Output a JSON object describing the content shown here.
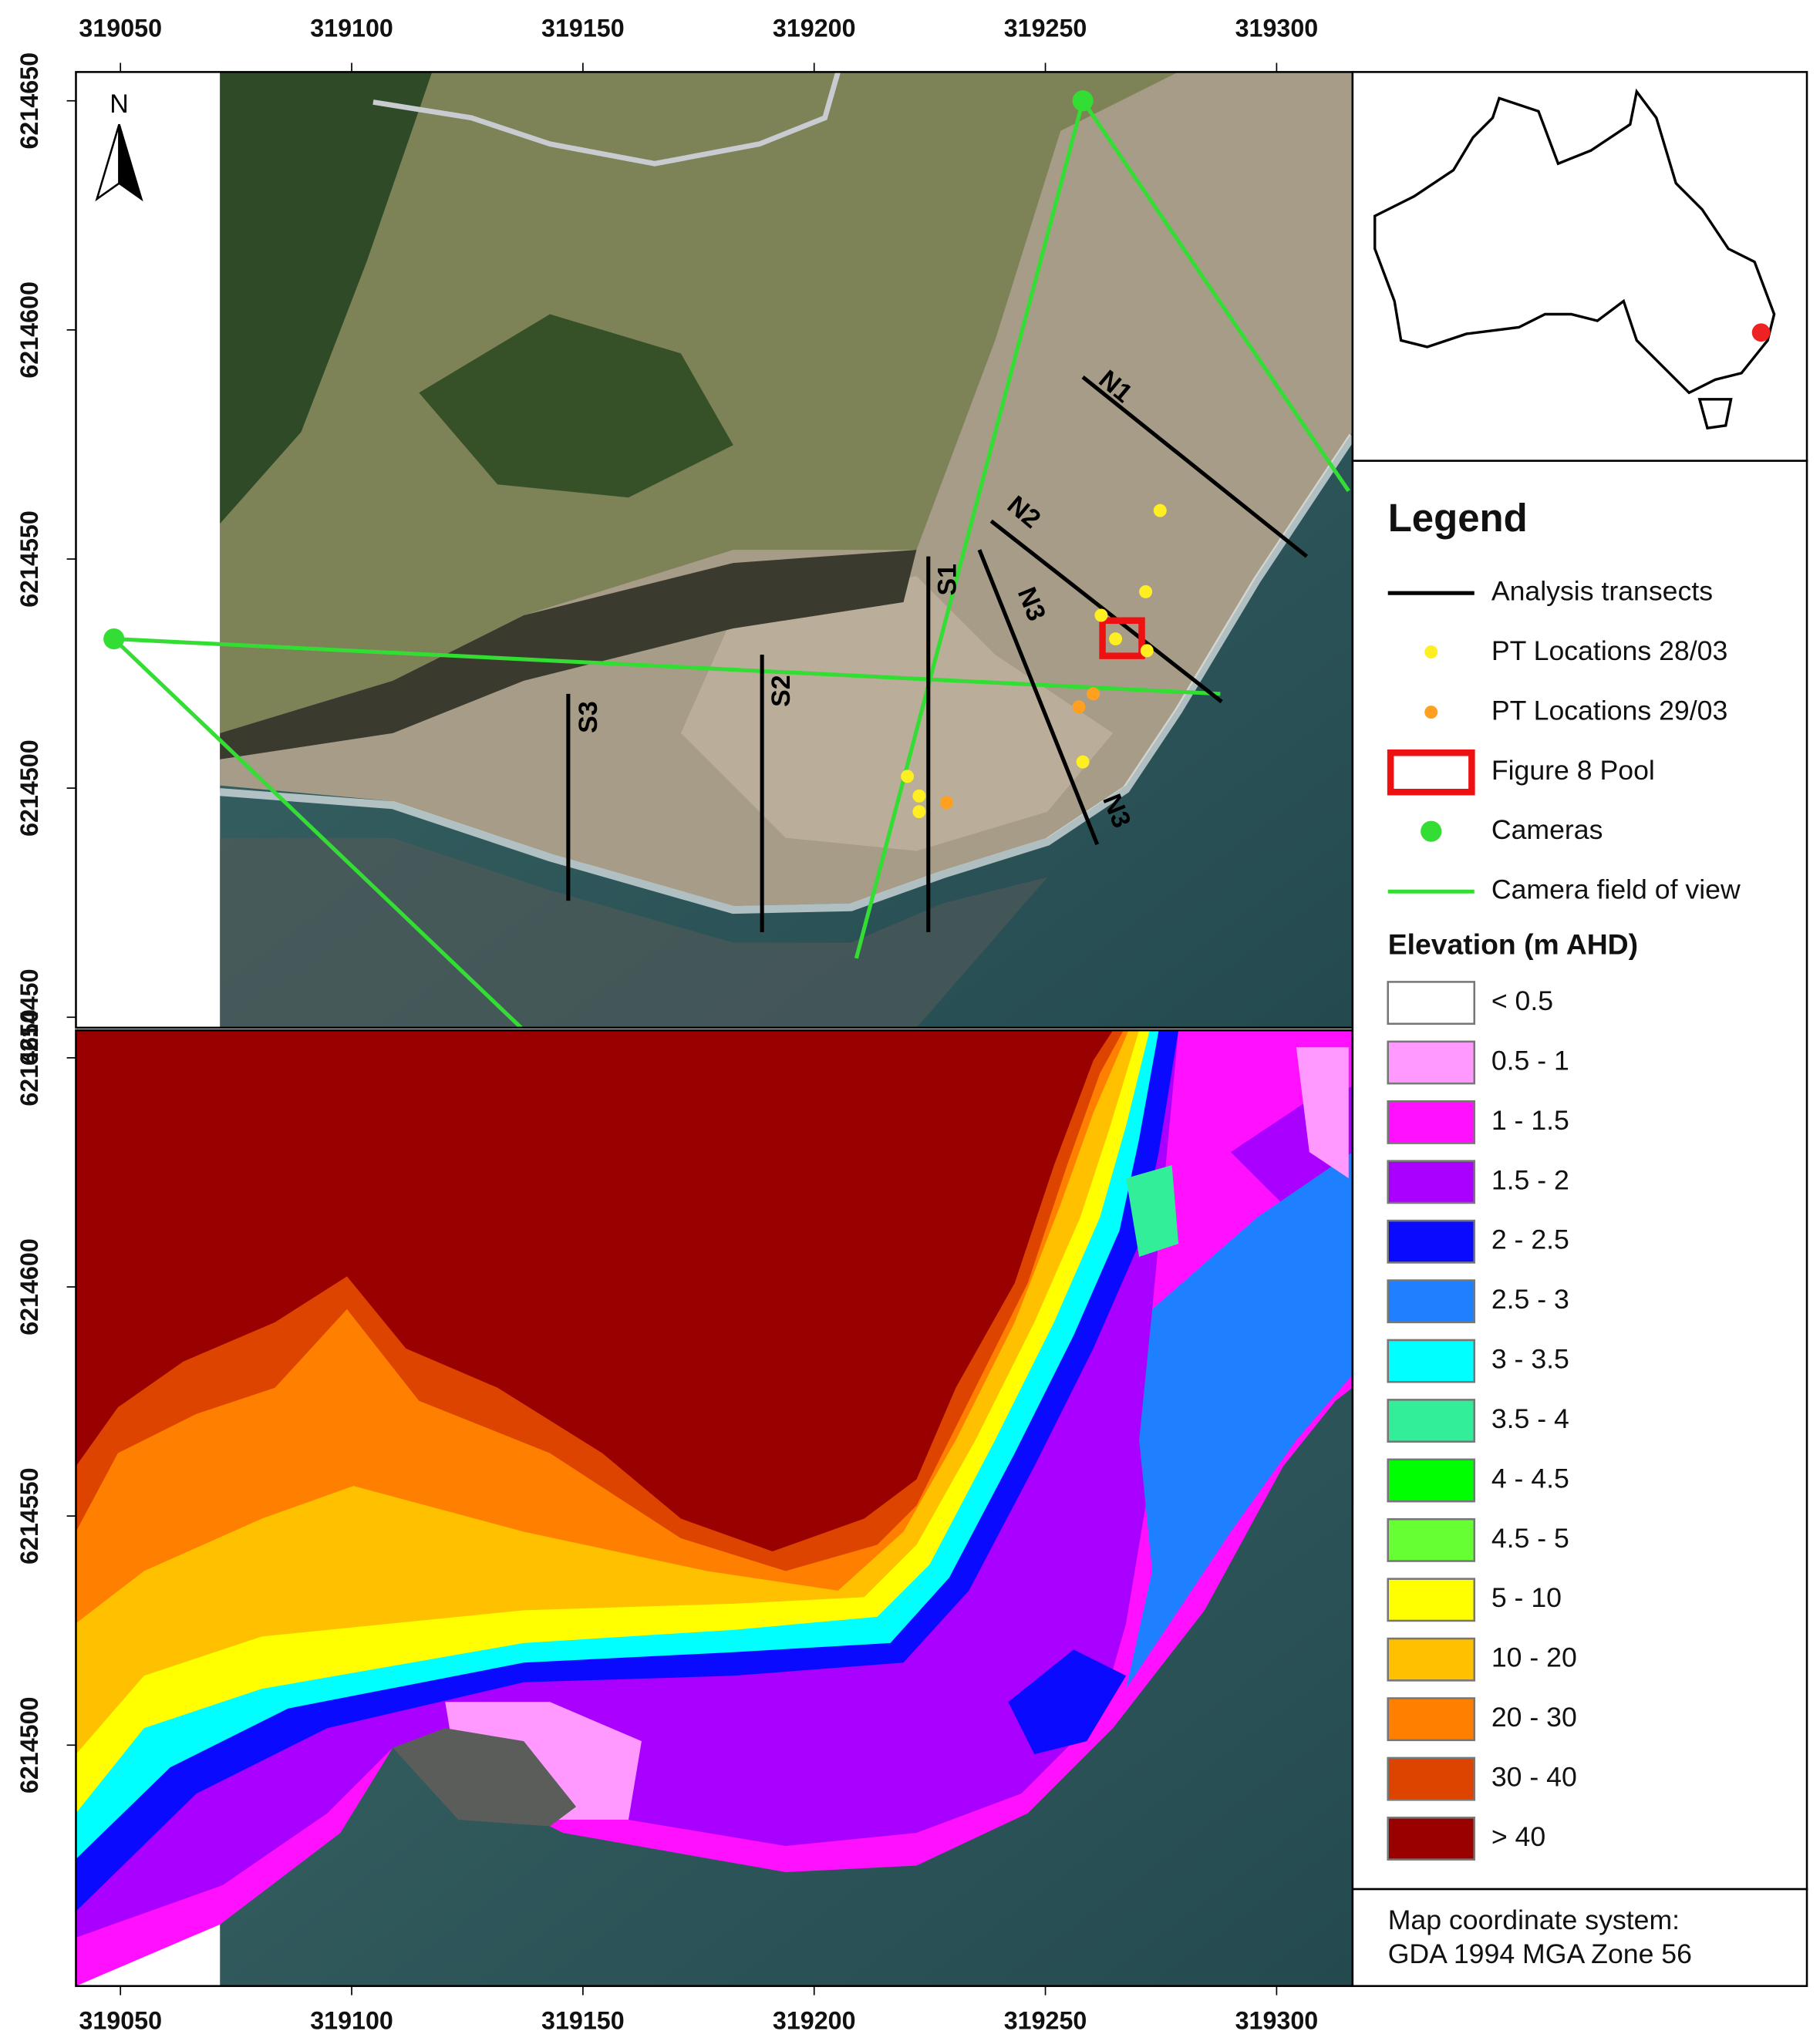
{
  "map": {
    "x_ticks": [
      319050,
      319100,
      319150,
      319200,
      319250,
      319300
    ],
    "y_ticks_upper": [
      6214650,
      6214600,
      6214550,
      6214500,
      6214450
    ],
    "y_ticks_lower": [
      6214650,
      6214600,
      6214550,
      6214500
    ],
    "north_label": "N",
    "transects": [
      "N1",
      "N2",
      "N3",
      "S1",
      "S2",
      "S3"
    ]
  },
  "legend": {
    "title": "Legend",
    "items": [
      "Analysis transects",
      "PT Locations 28/03",
      "PT Locations 29/03",
      "Figure 8 Pool",
      "Cameras",
      "Camera field of view"
    ],
    "elevation_title": "Elevation (m AHD)",
    "elevation_classes": [
      {
        "label": "< 0.5",
        "color": "#ffffff"
      },
      {
        "label": "0.5 - 1",
        "color": "#ff99ff"
      },
      {
        "label": "1 - 1.5",
        "color": "#ff11ff"
      },
      {
        "label": "1.5 - 2",
        "color": "#aa00ff"
      },
      {
        "label": "2 - 2.5",
        "color": "#0a0aff"
      },
      {
        "label": "2.5 - 3",
        "color": "#1e80ff"
      },
      {
        "label": "3 - 3.5",
        "color": "#00ffff"
      },
      {
        "label": "3.5 - 4",
        "color": "#33ee99"
      },
      {
        "label": "4 - 4.5",
        "color": "#00ff00"
      },
      {
        "label": "4.5 - 5",
        "color": "#66ff33"
      },
      {
        "label": "5 - 10",
        "color": "#ffff00"
      },
      {
        "label": "10 - 20",
        "color": "#ffc000"
      },
      {
        "label": "20 - 30",
        "color": "#ff7f00"
      },
      {
        "label": "30 - 40",
        "color": "#dd4400"
      },
      {
        "label": "> 40",
        "color": "#990000"
      }
    ]
  },
  "coordinate_system": [
    "Map coordinate system:",
    "GDA 1994 MGA Zone 56"
  ]
}
